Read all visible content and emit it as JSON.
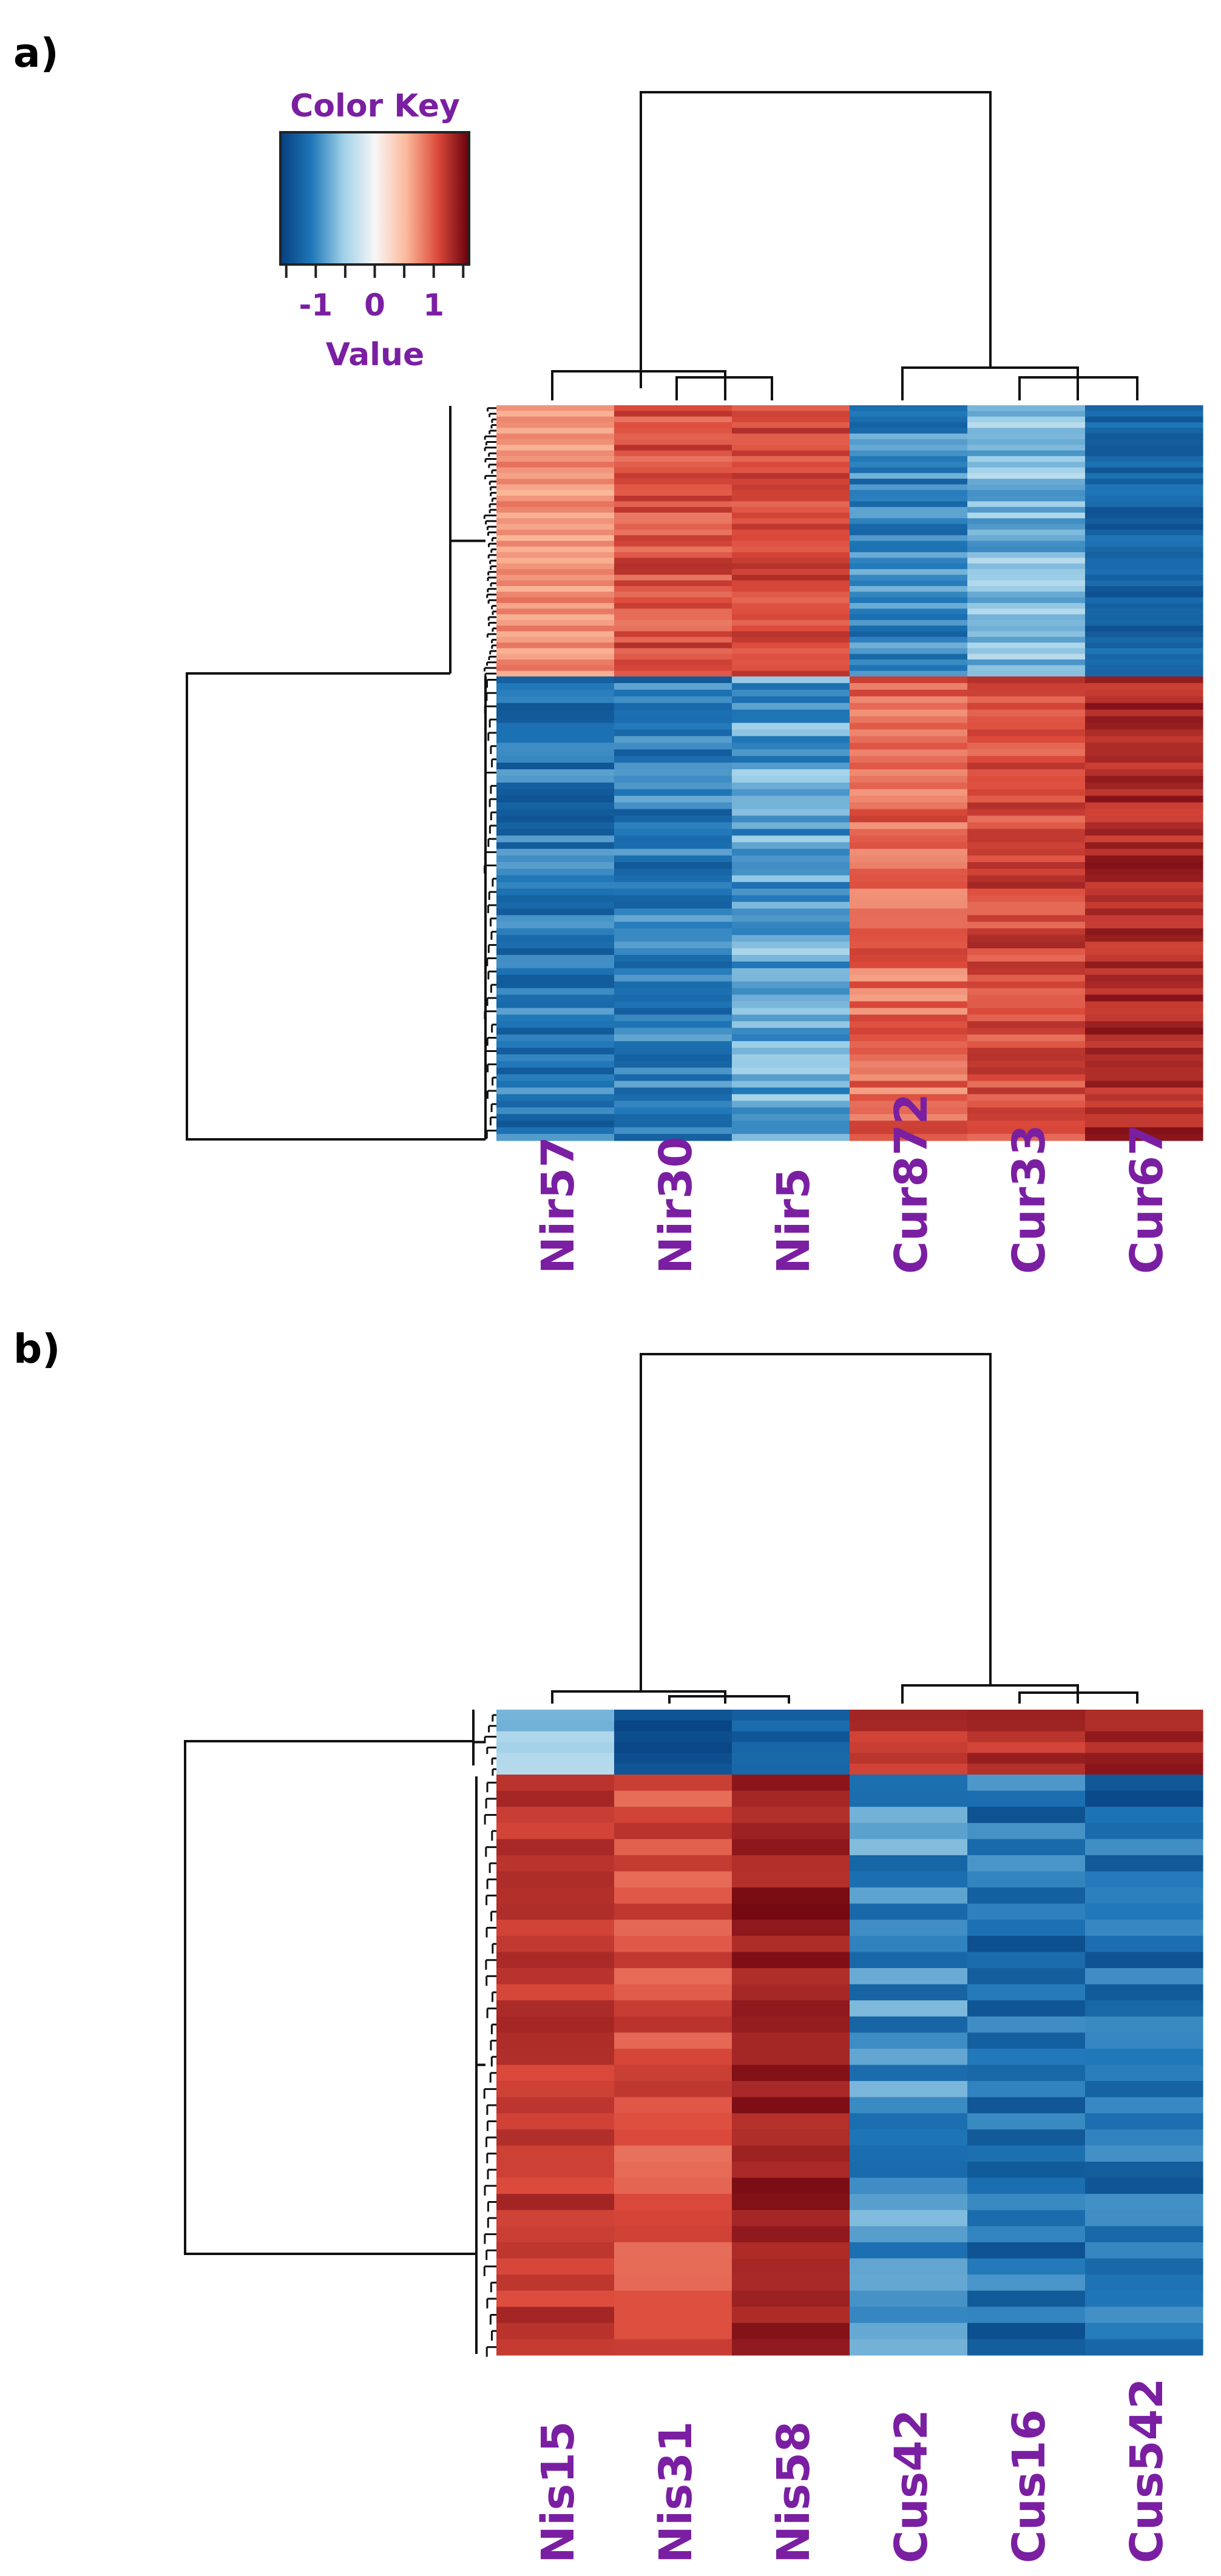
{
  "panels": {
    "a": {
      "label": "a)"
    },
    "b": {
      "label": "b)"
    }
  },
  "chart_data": [
    {
      "type": "heatmap",
      "panel": "a)",
      "color_key": {
        "title": "Color Key",
        "xlabel": "Value",
        "ticks": [
          "-1",
          "0",
          "1"
        ],
        "range": [
          -1.6,
          1.6
        ],
        "colors": [
          "#063f7e",
          "#1f77b8",
          "#9fd0e8",
          "#f7f7f7",
          "#fbb99a",
          "#dc4a3b",
          "#67000d"
        ]
      },
      "columns": [
        "Nir57",
        "Nir30",
        "Nir5",
        "Cur872",
        "Cur33",
        "Cur67"
      ],
      "row_clusters": [
        {
          "name": "upper",
          "n_rows": 48,
          "base": [
            0.72,
            1.05,
            1.1,
            -1.0,
            -0.65,
            -1.25
          ],
          "spread": [
            0.18,
            0.22,
            0.18,
            0.3,
            0.32,
            0.18
          ]
        },
        {
          "name": "lower",
          "n_rows": 70,
          "base": [
            -1.1,
            -1.05,
            -0.8,
            0.9,
            1.1,
            1.3
          ],
          "spread": [
            0.3,
            0.3,
            0.35,
            0.25,
            0.22,
            0.18
          ]
        }
      ],
      "column_dendrogram": "((Nir57,(Nir30,Nir5)),(Cur872,(Cur33,Cur67)))"
    },
    {
      "type": "heatmap",
      "panel": "b)",
      "columns": [
        "Nis15",
        "Nis31",
        "Nis58",
        "Cus42",
        "Cus16",
        "Cus542"
      ],
      "row_clusters": [
        {
          "name": "upper",
          "n_rows": 6,
          "base": [
            -0.55,
            -1.45,
            -1.3,
            1.2,
            1.25,
            1.3
          ],
          "spread": [
            0.2,
            0.1,
            0.15,
            0.15,
            0.15,
            0.15
          ]
        },
        {
          "name": "lower",
          "n_rows": 36,
          "base": [
            1.2,
            1.05,
            1.4,
            -0.95,
            -1.15,
            -1.2
          ],
          "spread": [
            0.15,
            0.18,
            0.15,
            0.3,
            0.3,
            0.3
          ]
        }
      ],
      "column_dendrogram": "((Nis15,(Nis31,Nis58)),(Cus42,(Cus16,Cus542)))"
    }
  ]
}
